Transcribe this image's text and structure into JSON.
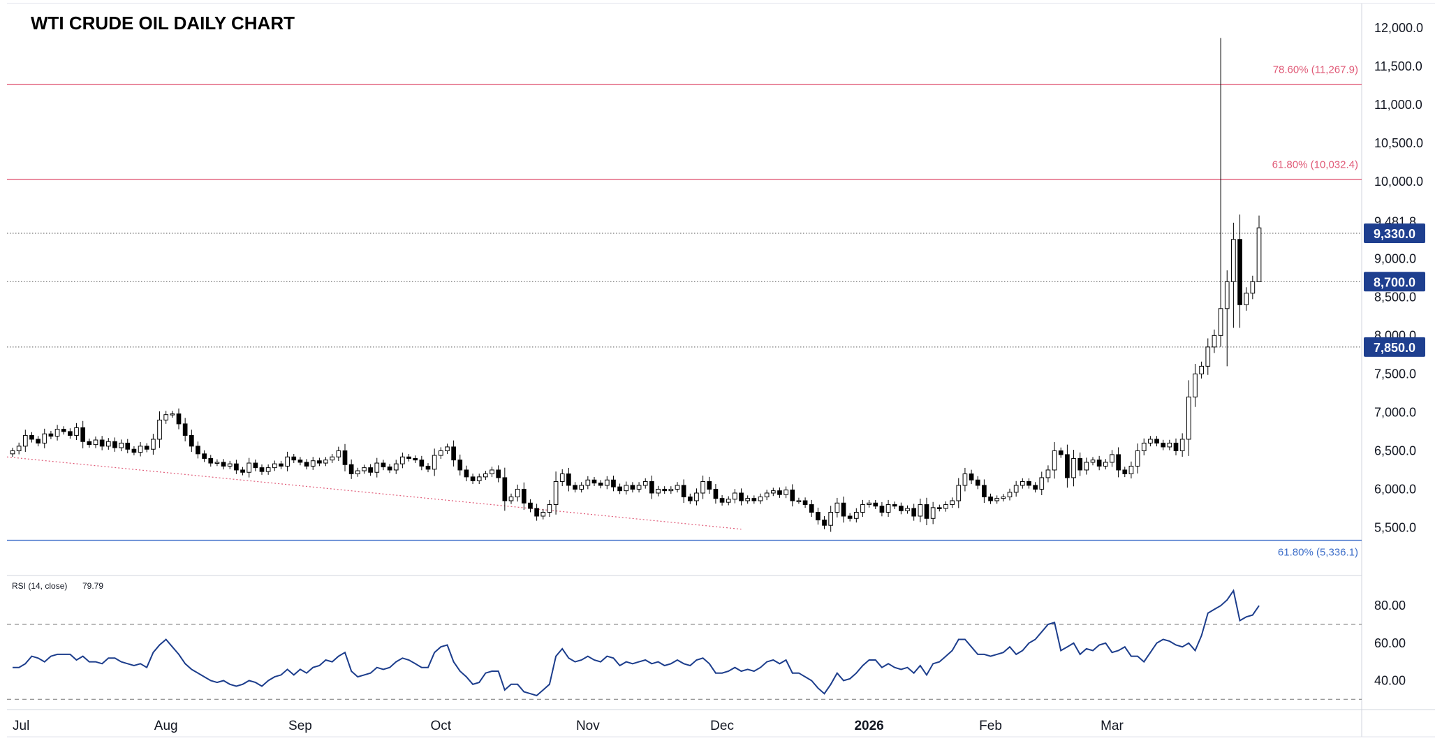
{
  "chart_data": [
    {
      "type": "candlestick",
      "title": "WTI CRUDE OIL DAILY CHART",
      "y_ticks": [
        "12,000.0",
        "11,500.0",
        "11,000.0",
        "10,500.0",
        "10,000.0",
        "9,481.8",
        "9,000.0",
        "8,500.0",
        "8,000.0",
        "7,500.0",
        "7,000.0",
        "6,500.0",
        "6,000.0",
        "5,500.0"
      ],
      "y_tick_values": [
        12000,
        11500,
        11000,
        10500,
        10000,
        9481.8,
        9000,
        8500,
        8000,
        7500,
        7000,
        6500,
        6000,
        5500
      ],
      "ylim": [
        5250,
        12110
      ],
      "x_ticks": [
        "Jul",
        "Aug",
        "Sep",
        "Oct",
        "Nov",
        "Dec",
        "2026",
        "Feb",
        "Mar"
      ],
      "x_tick_bar_index": [
        0,
        24,
        45,
        67,
        90,
        111,
        134,
        153,
        172
      ],
      "levels": [
        {
          "label": "78.60% (11,267.9)",
          "value": 11267.9,
          "color": "#e05a77",
          "style": "solid"
        },
        {
          "label": "61.80% (10,032.4)",
          "value": 10032.4,
          "color": "#e05a77",
          "style": "solid"
        },
        {
          "label": "61.80% (5,336.1)",
          "value": 5336.1,
          "color": "#3d6ec9",
          "style": "solid"
        }
      ],
      "price_tags": [
        {
          "label": "9,330.0",
          "value": 9330
        },
        {
          "label": "8,700.0",
          "value": 8700
        },
        {
          "label": "7,850.0",
          "value": 7850
        }
      ],
      "trendline": {
        "from": [
          0,
          6420
        ],
        "to": [
          114,
          5480
        ],
        "color": "#e05a77",
        "style": "dotted"
      },
      "closes": [
        6500,
        6560,
        6700,
        6650,
        6600,
        6720,
        6690,
        6780,
        6750,
        6700,
        6800,
        6620,
        6580,
        6640,
        6560,
        6620,
        6540,
        6600,
        6520,
        6480,
        6560,
        6520,
        6650,
        6900,
        6970,
        6980,
        6850,
        6700,
        6560,
        6460,
        6400,
        6340,
        6350,
        6300,
        6330,
        6250,
        6220,
        6340,
        6280,
        6230,
        6280,
        6330,
        6300,
        6420,
        6380,
        6350,
        6300,
        6370,
        6340,
        6380,
        6420,
        6500,
        6320,
        6200,
        6240,
        6280,
        6220,
        6340,
        6290,
        6250,
        6330,
        6420,
        6400,
        6380,
        6300,
        6260,
        6440,
        6500,
        6550,
        6380,
        6250,
        6160,
        6110,
        6160,
        6200,
        6250,
        6150,
        5850,
        5900,
        6000,
        5820,
        5750,
        5650,
        5700,
        5800,
        6100,
        6200,
        6050,
        6000,
        6050,
        6120,
        6080,
        6050,
        6120,
        6030,
        5980,
        6050,
        6000,
        6050,
        6100,
        5950,
        6000,
        5980,
        6000,
        6050,
        5900,
        5850,
        5950,
        6100,
        6000,
        5880,
        5830,
        5870,
        5950,
        5850,
        5880,
        5850,
        5900,
        5950,
        5980,
        5930,
        5990,
        5850,
        5850,
        5800,
        5700,
        5600,
        5530,
        5700,
        5820,
        5650,
        5620,
        5700,
        5800,
        5820,
        5780,
        5700,
        5800,
        5780,
        5720,
        5750,
        5650,
        5800,
        5620,
        5760,
        5750,
        5800,
        5850,
        6050,
        6200,
        6120,
        6050,
        5900,
        5850,
        5880,
        5900,
        5960,
        6050,
        6100,
        6050,
        6000,
        6150,
        6250,
        6500,
        6450,
        6150,
        6400,
        6250,
        6350,
        6380,
        6300,
        6350,
        6450,
        6250,
        6200,
        6300,
        6500,
        6600,
        6650,
        6600,
        6550,
        6600,
        6500,
        6650,
        7200,
        7500,
        7600,
        7850,
        8000,
        8350,
        8700,
        9250,
        8400,
        8550,
        8700,
        9400
      ],
      "series": [
        {
          "name": "RSI (14, close)",
          "current_value_label": "79.79",
          "y_ticks": [
            "80.00",
            "60.00",
            "40.00"
          ],
          "y_tick_values": [
            80,
            60,
            40
          ],
          "ylim": [
            26,
            92
          ],
          "bands": [
            70,
            30
          ],
          "values": [
            47,
            47,
            49,
            53,
            52,
            50,
            53,
            54,
            54,
            54,
            51,
            53,
            50,
            50,
            49,
            52,
            52,
            50,
            49,
            48,
            49,
            47,
            55,
            59,
            62,
            58,
            54,
            49,
            46,
            44,
            42,
            40,
            39,
            40,
            38,
            37,
            38,
            40,
            39,
            37,
            40,
            42,
            43,
            46,
            43,
            46,
            44,
            47,
            48,
            51,
            50,
            53,
            55,
            45,
            42,
            43,
            44,
            47,
            46,
            47,
            50,
            52,
            51,
            49,
            47,
            47,
            55,
            58,
            59,
            50,
            45,
            42,
            38,
            39,
            44,
            45,
            45,
            35,
            38,
            38,
            34,
            33,
            32,
            35,
            38,
            53,
            57,
            52,
            50,
            51,
            53,
            51,
            50,
            53,
            52,
            48,
            50,
            49,
            50,
            51,
            49,
            50,
            48,
            49,
            51,
            49,
            48,
            51,
            52,
            49,
            44,
            44,
            45,
            47,
            45,
            46,
            45,
            47,
            50,
            51,
            49,
            51,
            44,
            44,
            42,
            40,
            36,
            33,
            38,
            44,
            40,
            41,
            44,
            48,
            51,
            51,
            47,
            49,
            47,
            46,
            47,
            44,
            48,
            43,
            49,
            50,
            53,
            56,
            62,
            62,
            58,
            54,
            54,
            53,
            54,
            55,
            58,
            54,
            56,
            60,
            62,
            66,
            70,
            71,
            56,
            58,
            60,
            54,
            57,
            56,
            59,
            60,
            55,
            56,
            58,
            53,
            53,
            50,
            55,
            60,
            62,
            61,
            59,
            58,
            60,
            56,
            64,
            76,
            78,
            80,
            83,
            88,
            72,
            74,
            75,
            80
          ]
        }
      ],
      "grid": false,
      "legend": "none"
    }
  ]
}
